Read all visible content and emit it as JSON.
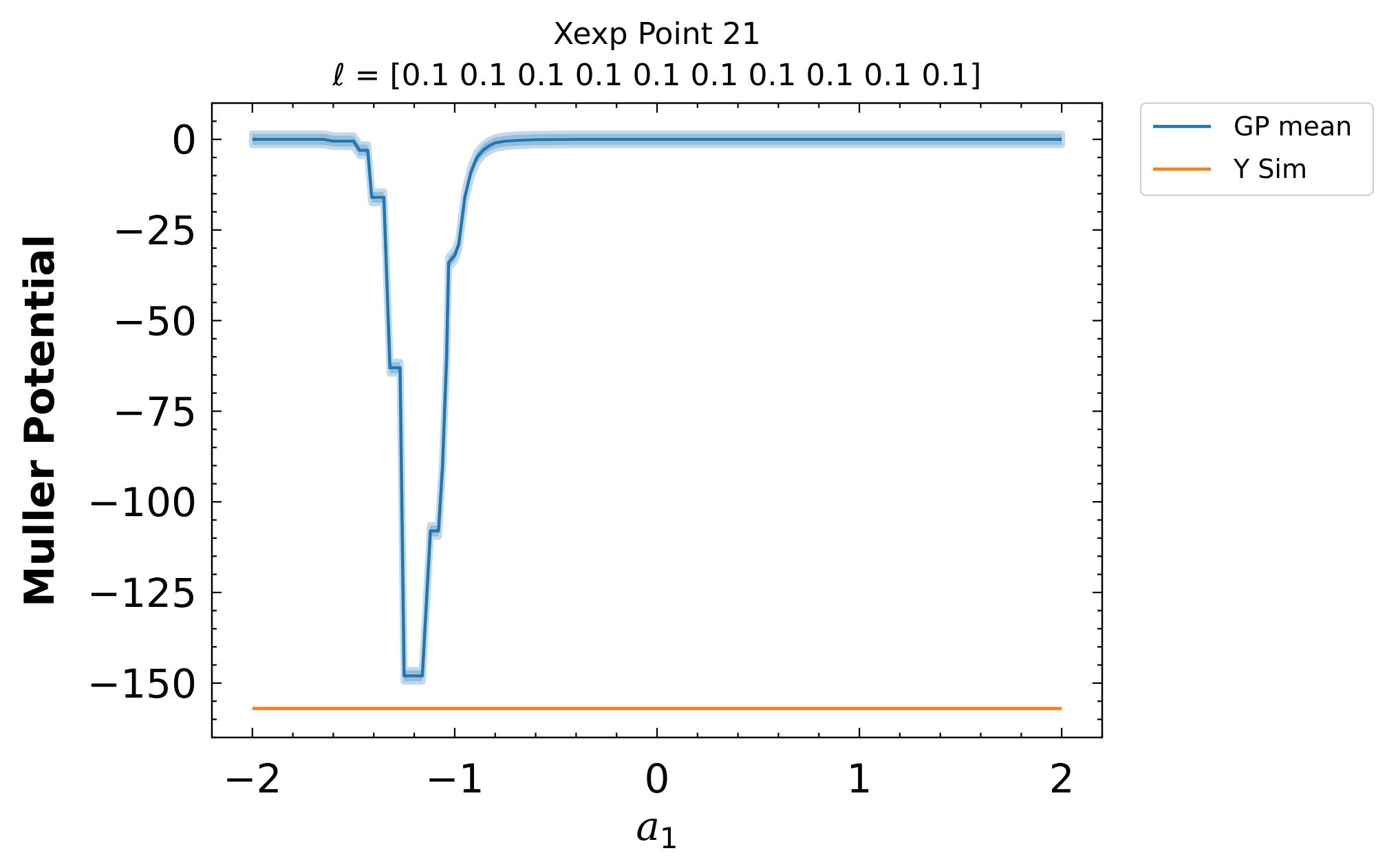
{
  "chart_data": {
    "type": "line",
    "title": "Xexp Point 21",
    "subtitle": "ℓ = [0.1 0.1 0.1 0.1 0.1 0.1 0.1 0.1 0.1 0.1]",
    "xlabel_base": "a",
    "xlabel_sub": "1",
    "ylabel": "Muller Potential",
    "xlim": [
      -2.2,
      2.2
    ],
    "ylim": [
      -165,
      10
    ],
    "xticks": [
      -2,
      -1,
      0,
      1,
      2
    ],
    "xtick_labels": [
      "−2",
      "−1",
      "0",
      "1",
      "2"
    ],
    "yticks": [
      0,
      -25,
      -50,
      -75,
      -100,
      -125,
      -150
    ],
    "ytick_labels": [
      "0",
      "−25",
      "−50",
      "−75",
      "−100",
      "−125",
      "−150"
    ],
    "grid": false,
    "legend_position": "outside-top-right",
    "series": [
      {
        "name": "GP mean",
        "color": "#1f77b4",
        "band_color": "#1f77b4",
        "band_halfwidth": 1.5,
        "x": [
          -2.0,
          -1.8,
          -1.7,
          -1.65,
          -1.6,
          -1.55,
          -1.5,
          -1.47,
          -1.43,
          -1.41,
          -1.35,
          -1.32,
          -1.28,
          -1.27,
          -1.25,
          -1.21,
          -1.16,
          -1.12,
          -1.08,
          -1.06,
          -1.04,
          -1.03,
          -1.0,
          -0.98,
          -0.95,
          -0.92,
          -0.89,
          -0.86,
          -0.83,
          -0.8,
          -0.75,
          -0.7,
          -0.6,
          -0.4,
          0.0,
          1.0,
          2.0
        ],
        "y": [
          0,
          0,
          0,
          0,
          -0.5,
          -0.5,
          -0.5,
          -3,
          -3,
          -16,
          -16,
          -63,
          -63,
          -63,
          -148,
          -148,
          -148,
          -108,
          -108,
          -90,
          -60,
          -34,
          -32,
          -29,
          -16,
          -9,
          -5,
          -3,
          -1.8,
          -1,
          -0.5,
          -0.3,
          -0.1,
          0,
          0,
          0,
          0
        ]
      },
      {
        "name": "Y Sim",
        "color": "#ff7f0e",
        "x": [
          -2.0,
          2.0
        ],
        "y": [
          -157,
          -157
        ]
      }
    ]
  }
}
